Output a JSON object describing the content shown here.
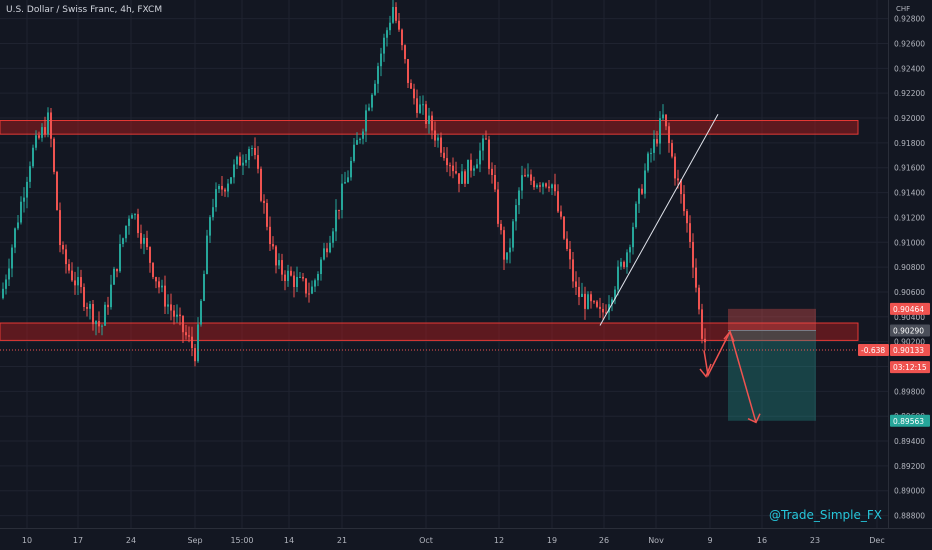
{
  "header": {
    "title": "U.S. Dollar / Swiss Franc, 4h, FXCM",
    "currency": "CHF"
  },
  "watermark": "@Trade_Simple_FX",
  "colors": {
    "background": "#131722",
    "up": "#26a69a",
    "down": "#ef5350",
    "grid": "#1f2330",
    "zone": "#b71c1c"
  },
  "chart_data": {
    "type": "candlestick",
    "yticks": [
      "0.92800",
      "0.92600",
      "0.92400",
      "0.92200",
      "0.92000",
      "0.91800",
      "0.91600",
      "0.91400",
      "0.91200",
      "0.91000",
      "0.90800",
      "0.90600",
      "0.90400",
      "0.90200",
      "0.90000",
      "0.89800",
      "0.89600",
      "0.89400",
      "0.89200",
      "0.89000",
      "0.88800"
    ],
    "ylim": [
      0.887,
      0.9295
    ],
    "xticks": [
      "10",
      "17",
      "24",
      "Sep",
      "15:00",
      "14",
      "21",
      "Oct",
      "12",
      "19",
      "26",
      "Nov",
      "9",
      "16",
      "23",
      "Dec"
    ],
    "price_labels": [
      {
        "text": "0.90464",
        "value": 0.90464,
        "color": "#ef5350"
      },
      {
        "text": "0.90290",
        "value": 0.9029,
        "color": "#4a4e59"
      },
      {
        "text": "0.90133",
        "value": 0.90133,
        "color": "#ef5350",
        "prefix": "-0.638"
      },
      {
        "text": "03:12:15",
        "value": 0.89995,
        "color": "#ef5350"
      },
      {
        "text": "0.89563",
        "value": 0.89563,
        "color": "#26a69a"
      }
    ],
    "zones": [
      {
        "name": "resistance-zone",
        "low": 0.9187,
        "high": 0.9198
      },
      {
        "name": "support-zone",
        "low": 0.9021,
        "high": 0.9035
      }
    ],
    "trade": {
      "entry": 0.9029,
      "stop": 0.90464,
      "target": 0.89563
    }
  }
}
